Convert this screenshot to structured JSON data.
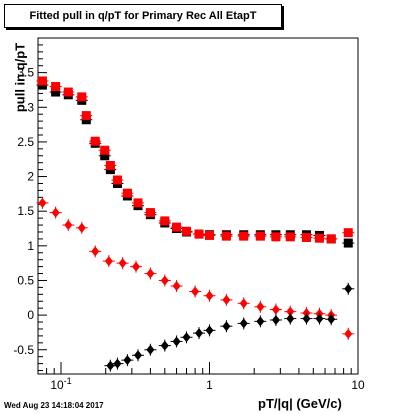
{
  "chart_data": {
    "type": "scatter",
    "title": "Fitted pull in q/pT for Primary Rec All EtapT",
    "xlabel": "pT/|q| (GeV/c)",
    "ylabel": "pull in q/pT",
    "xscale": "log",
    "xlim": [
      0.07,
      10
    ],
    "ylim": [
      -0.85,
      4.0
    ],
    "x_ticklabels": [
      "10^{-1}",
      "1",
      "10"
    ],
    "y_ticklabels": [
      "-0.5",
      "0",
      "0.5",
      "1",
      "1.5",
      "2",
      "2.5",
      "3",
      "3.5"
    ],
    "grid": false,
    "series": [
      {
        "marker": "square",
        "color": "#000000",
        "points": [
          [
            0.075,
            3.32
          ],
          [
            0.092,
            3.22
          ],
          [
            0.112,
            3.18
          ],
          [
            0.138,
            3.1
          ],
          [
            0.148,
            2.82
          ],
          [
            0.17,
            2.48
          ],
          [
            0.197,
            2.3
          ],
          [
            0.215,
            2.1
          ],
          [
            0.24,
            1.9
          ],
          [
            0.28,
            1.72
          ],
          [
            0.33,
            1.58
          ],
          [
            0.4,
            1.45
          ],
          [
            0.5,
            1.33
          ],
          [
            0.6,
            1.25
          ],
          [
            0.7,
            1.2
          ],
          [
            0.85,
            1.17
          ],
          [
            1.0,
            1.16
          ],
          [
            1.3,
            1.16
          ],
          [
            1.7,
            1.16
          ],
          [
            2.2,
            1.16
          ],
          [
            2.8,
            1.16
          ],
          [
            3.5,
            1.16
          ],
          [
            4.5,
            1.16
          ],
          [
            5.5,
            1.15
          ],
          [
            6.6,
            1.1
          ],
          [
            8.6,
            1.04
          ]
        ]
      },
      {
        "marker": "square",
        "color": "#ff0000",
        "points": [
          [
            0.075,
            3.38
          ],
          [
            0.092,
            3.3
          ],
          [
            0.112,
            3.22
          ],
          [
            0.138,
            3.15
          ],
          [
            0.148,
            2.88
          ],
          [
            0.17,
            2.51
          ],
          [
            0.197,
            2.38
          ],
          [
            0.215,
            2.16
          ],
          [
            0.24,
            1.95
          ],
          [
            0.28,
            1.76
          ],
          [
            0.33,
            1.62
          ],
          [
            0.4,
            1.48
          ],
          [
            0.5,
            1.36
          ],
          [
            0.6,
            1.27
          ],
          [
            0.7,
            1.21
          ],
          [
            0.85,
            1.17
          ],
          [
            1.0,
            1.15
          ],
          [
            1.3,
            1.14
          ],
          [
            1.7,
            1.14
          ],
          [
            2.2,
            1.14
          ],
          [
            2.8,
            1.13
          ],
          [
            3.5,
            1.13
          ],
          [
            4.5,
            1.12
          ],
          [
            5.5,
            1.11
          ],
          [
            6.6,
            1.1
          ],
          [
            8.6,
            1.19
          ]
        ]
      },
      {
        "marker": "diamond",
        "color": "#ff0000",
        "points": [
          [
            0.075,
            1.62
          ],
          [
            0.092,
            1.48
          ],
          [
            0.112,
            1.3
          ],
          [
            0.138,
            1.26
          ],
          [
            0.17,
            0.92
          ],
          [
            0.21,
            0.78
          ],
          [
            0.26,
            0.75
          ],
          [
            0.32,
            0.7
          ],
          [
            0.4,
            0.6
          ],
          [
            0.5,
            0.5
          ],
          [
            0.6,
            0.42
          ],
          [
            0.8,
            0.34
          ],
          [
            1.0,
            0.28
          ],
          [
            1.3,
            0.22
          ],
          [
            1.7,
            0.17
          ],
          [
            2.2,
            0.12
          ],
          [
            2.8,
            0.08
          ],
          [
            3.5,
            0.05
          ],
          [
            4.5,
            0.03
          ],
          [
            5.5,
            0.02
          ],
          [
            6.6,
            0.0
          ],
          [
            8.6,
            -0.27
          ]
        ]
      },
      {
        "marker": "diamond",
        "color": "#000000",
        "points": [
          [
            0.215,
            -0.73
          ],
          [
            0.24,
            -0.7
          ],
          [
            0.28,
            -0.65
          ],
          [
            0.33,
            -0.58
          ],
          [
            0.4,
            -0.5
          ],
          [
            0.5,
            -0.44
          ],
          [
            0.6,
            -0.38
          ],
          [
            0.7,
            -0.32
          ],
          [
            0.85,
            -0.26
          ],
          [
            1.0,
            -0.22
          ],
          [
            1.3,
            -0.16
          ],
          [
            1.7,
            -0.12
          ],
          [
            2.2,
            -0.09
          ],
          [
            2.8,
            -0.07
          ],
          [
            3.5,
            -0.05
          ],
          [
            4.5,
            -0.05
          ],
          [
            5.5,
            -0.05
          ],
          [
            6.6,
            -0.06
          ],
          [
            8.6,
            0.38
          ]
        ]
      }
    ]
  },
  "footer": {
    "timestamp": "Wed Aug 23 14:18:04 2017"
  },
  "colors": {
    "red": "#ff0000",
    "black": "#000000"
  }
}
